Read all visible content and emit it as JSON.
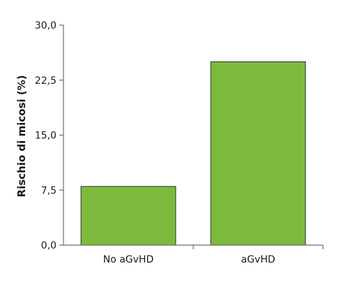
{
  "chart_data": {
    "type": "bar",
    "title": "",
    "xlabel": "",
    "ylabel": "Rischio di micosi (%)",
    "categories": [
      "No aGvHD",
      "aGvHD"
    ],
    "values": [
      8.0,
      25.0
    ],
    "ylim": [
      0,
      30
    ],
    "yticks": [
      0,
      7.5,
      15,
      22.5,
      30
    ],
    "ytick_labels": [
      "0,0",
      "7,5",
      "15,0",
      "22,5",
      "30,0"
    ],
    "grid": false,
    "legend": "none",
    "colors": {
      "bar_fill": "#7dba3c",
      "bar_stroke": "#2e2e2e",
      "axis": "#6b6b6b"
    }
  }
}
